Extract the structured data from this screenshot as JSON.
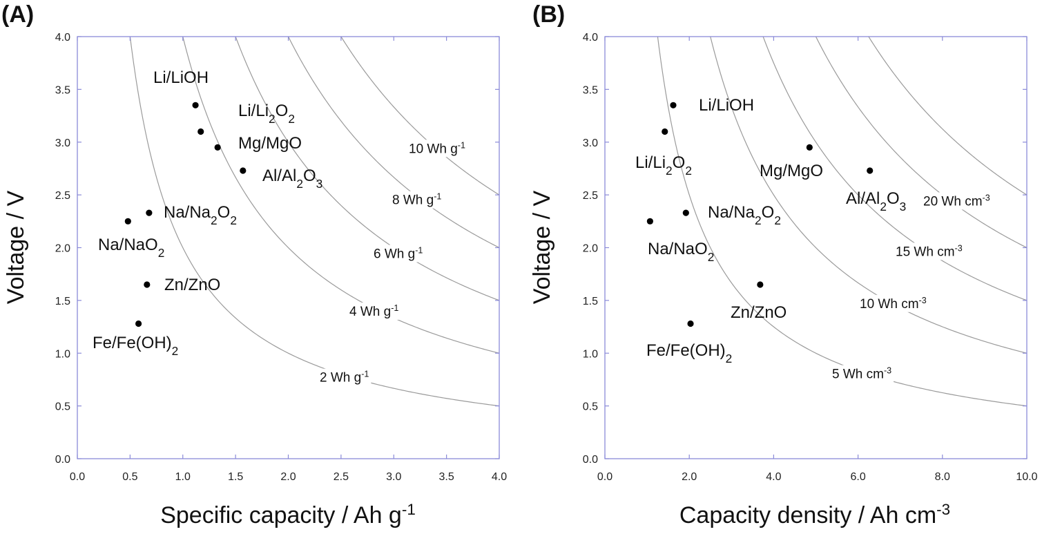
{
  "chart_data": [
    {
      "type": "scatter",
      "panel_label": "(A)",
      "xlabel": {
        "text": "Specific capacity / Ah g",
        "sup": "-1"
      },
      "ylabel": "Voltage / V",
      "xlim": [
        0,
        4.0
      ],
      "ylim": [
        0,
        4.0
      ],
      "xticks": [
        "0.0",
        "0.5",
        "1.0",
        "1.5",
        "2.0",
        "2.5",
        "3.0",
        "3.5",
        "4.0"
      ],
      "yticks": [
        "0.0",
        "0.5",
        "1.0",
        "1.5",
        "2.0",
        "2.5",
        "3.0",
        "3.5",
        "4.0"
      ],
      "grid": false,
      "points": [
        {
          "name": "Li/LiOH",
          "x": 1.12,
          "y": 3.35,
          "label": [
            {
              "t": "Li/LiOH"
            }
          ]
        },
        {
          "name": "Li/Li2O2",
          "x": 1.17,
          "y": 3.1,
          "label": [
            {
              "t": "Li/Li"
            },
            {
              "t": "2",
              "sub": true
            },
            {
              "t": "O"
            },
            {
              "t": "2",
              "sub": true
            }
          ]
        },
        {
          "name": "Mg/MgO",
          "x": 1.33,
          "y": 2.95,
          "label": [
            {
              "t": "Mg/MgO"
            }
          ]
        },
        {
          "name": "Al/Al2O3",
          "x": 1.57,
          "y": 2.73,
          "label": [
            {
              "t": "Al/Al"
            },
            {
              "t": "2",
              "sub": true
            },
            {
              "t": "O"
            },
            {
              "t": "3",
              "sub": true
            }
          ]
        },
        {
          "name": "Na/Na2O2",
          "x": 0.68,
          "y": 2.33,
          "label": [
            {
              "t": "Na/Na"
            },
            {
              "t": "2",
              "sub": true
            },
            {
              "t": "O"
            },
            {
              "t": "2",
              "sub": true
            }
          ]
        },
        {
          "name": "Na/NaO2",
          "x": 0.48,
          "y": 2.25,
          "label": [
            {
              "t": "Na/NaO"
            },
            {
              "t": "2",
              "sub": true
            }
          ]
        },
        {
          "name": "Zn/ZnO",
          "x": 0.66,
          "y": 1.65,
          "label": [
            {
              "t": "Zn/ZnO"
            }
          ]
        },
        {
          "name": "Fe/Fe(OH)2",
          "x": 0.58,
          "y": 1.28,
          "label": [
            {
              "t": "Fe/Fe(OH)"
            },
            {
              "t": "2",
              "sub": true
            }
          ]
        }
      ],
      "energy_curves": [
        {
          "energy": 2,
          "label": {
            "text": "2 Wh g",
            "sup": "-1"
          }
        },
        {
          "energy": 4,
          "label": {
            "text": "4 Wh g",
            "sup": "-1"
          }
        },
        {
          "energy": 6,
          "label": {
            "text": "6 Wh g",
            "sup": "-1"
          }
        },
        {
          "energy": 8,
          "label": {
            "text": "8 Wh g",
            "sup": "-1"
          }
        },
        {
          "energy": 10,
          "label": {
            "text": "10 Wh g",
            "sup": "-1"
          }
        }
      ]
    },
    {
      "type": "scatter",
      "panel_label": "(B)",
      "xlabel": {
        "text": "Capacity density / Ah cm",
        "sup": "-3"
      },
      "ylabel": "Voltage / V",
      "xlim": [
        0,
        10.0
      ],
      "ylim": [
        0,
        4.0
      ],
      "xticks": [
        "0.0",
        "2.0",
        "4.0",
        "6.0",
        "8.0",
        "10.0"
      ],
      "yticks": [
        "0.0",
        "0.5",
        "1.0",
        "1.5",
        "2.0",
        "2.5",
        "3.0",
        "3.5",
        "4.0"
      ],
      "grid": false,
      "points": [
        {
          "name": "Li/LiOH",
          "x": 1.62,
          "y": 3.35,
          "label": [
            {
              "t": "Li/LiOH"
            }
          ]
        },
        {
          "name": "Li/Li2O2",
          "x": 1.42,
          "y": 3.1,
          "label": [
            {
              "t": "Li/Li"
            },
            {
              "t": "2",
              "sub": true
            },
            {
              "t": "O"
            },
            {
              "t": "2",
              "sub": true
            }
          ]
        },
        {
          "name": "Mg/MgO",
          "x": 4.85,
          "y": 2.95,
          "label": [
            {
              "t": "Mg/MgO"
            }
          ]
        },
        {
          "name": "Al/Al2O3",
          "x": 6.28,
          "y": 2.73,
          "label": [
            {
              "t": "Al/Al"
            },
            {
              "t": "2",
              "sub": true
            },
            {
              "t": "O"
            },
            {
              "t": "3",
              "sub": true
            }
          ]
        },
        {
          "name": "Na/Na2O2",
          "x": 1.92,
          "y": 2.33,
          "label": [
            {
              "t": "Na/Na"
            },
            {
              "t": "2",
              "sub": true
            },
            {
              "t": "O"
            },
            {
              "t": "2",
              "sub": true
            }
          ]
        },
        {
          "name": "Na/NaO2",
          "x": 1.07,
          "y": 2.25,
          "label": [
            {
              "t": "Na/NaO"
            },
            {
              "t": "2",
              "sub": true
            }
          ]
        },
        {
          "name": "Zn/ZnO",
          "x": 3.68,
          "y": 1.65,
          "label": [
            {
              "t": "Zn/ZnO"
            }
          ]
        },
        {
          "name": "Fe/Fe(OH)2",
          "x": 2.03,
          "y": 1.28,
          "label": [
            {
              "t": "Fe/Fe(OH)"
            },
            {
              "t": "2",
              "sub": true
            }
          ]
        }
      ],
      "energy_curves": [
        {
          "energy": 5,
          "label": {
            "text": "5 Wh cm",
            "sup": "-3"
          }
        },
        {
          "energy": 10,
          "label": {
            "text": "10 Wh cm",
            "sup": "-3"
          }
        },
        {
          "energy": 15,
          "label": {
            "text": "15 Wh cm",
            "sup": "-3"
          }
        },
        {
          "energy": 20,
          "label": {
            "text": "20 Wh cm",
            "sup": "-3"
          }
        },
        {
          "energy": 25,
          "label": null
        }
      ]
    }
  ]
}
